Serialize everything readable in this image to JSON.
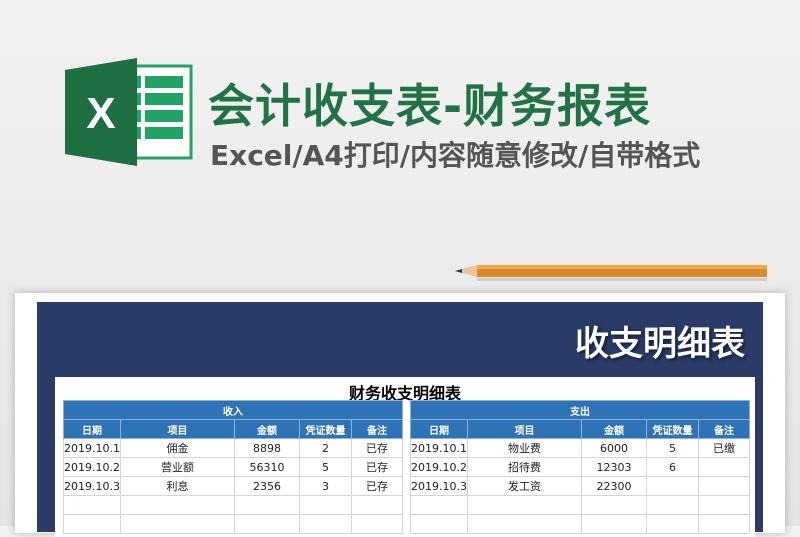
{
  "header": {
    "title": "会计收支表-财务报表",
    "subtitle": "Excel/A4打印/内容随意修改/自带格式",
    "logo_letter": "X"
  },
  "banner": "收支明细表",
  "sheet": {
    "title": "财务收支明细表",
    "columns": [
      "日期",
      "项目",
      "金额",
      "凭证数量",
      "备注"
    ],
    "income": {
      "label": "收入",
      "rows": [
        [
          "2019.10.1",
          "佣金",
          "8898",
          "2",
          "已存"
        ],
        [
          "2019.10.2",
          "营业额",
          "56310",
          "5",
          "已存"
        ],
        [
          "2019.10.3",
          "利息",
          "2356",
          "3",
          "已存"
        ],
        [
          "",
          "",
          "",
          "",
          ""
        ],
        [
          "",
          "",
          "",
          "",
          ""
        ]
      ]
    },
    "expense": {
      "label": "支出",
      "rows": [
        [
          "2019.10.1",
          "物业费",
          "6000",
          "5",
          "已缴"
        ],
        [
          "2019.10.2",
          "招待费",
          "12303",
          "6",
          ""
        ],
        [
          "2019.10.3",
          "发工资",
          "22300",
          "",
          ""
        ],
        [
          "",
          "",
          "",
          "",
          ""
        ],
        [
          "",
          "",
          "",
          "",
          ""
        ]
      ]
    }
  },
  "colors": {
    "brand_green": "#217346",
    "navy": "#2a3b68",
    "header_blue": "#2e73b5"
  }
}
